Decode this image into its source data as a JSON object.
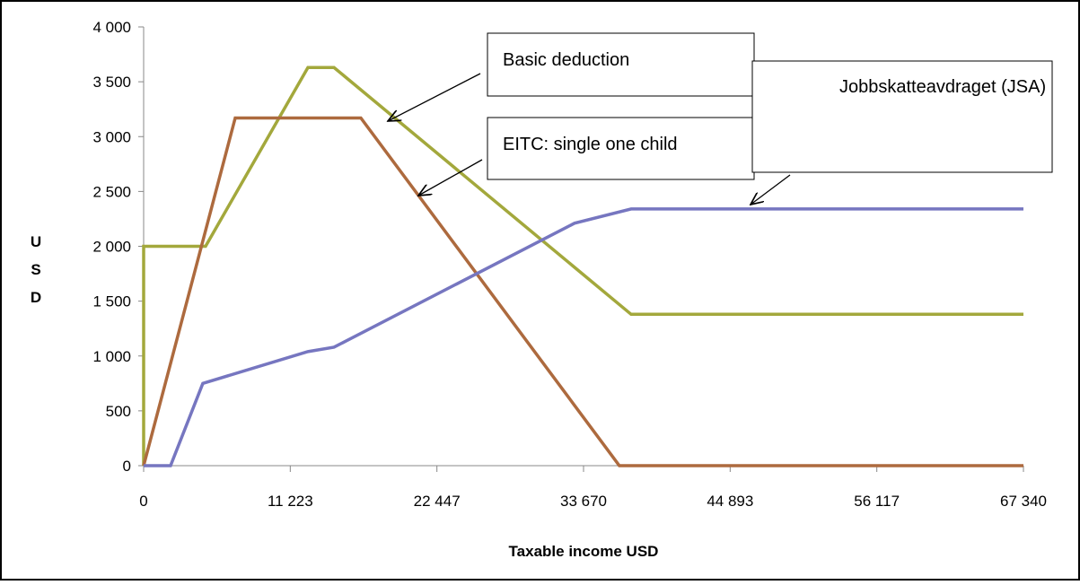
{
  "chart_data": {
    "type": "line",
    "xlabel": "Taxable income USD",
    "ylabel": "USD",
    "xlim": [
      0,
      67340
    ],
    "xticks": [
      0,
      {
        "value": 11223,
        "label": "11 223"
      },
      {
        "value": 22447,
        "label": "22 447"
      },
      {
        "value": 33670,
        "label": "33 670"
      },
      {
        "value": 44893,
        "label": "44 893"
      },
      {
        "value": 56117,
        "label": "56 117"
      },
      {
        "value": 67340,
        "label": "67 340"
      }
    ],
    "ylim": [
      0,
      4000
    ],
    "yticks": [
      0,
      500,
      {
        "value": 1000,
        "label": "1 000"
      },
      {
        "value": 1500,
        "label": "1 500"
      },
      {
        "value": 2000,
        "label": "2 000"
      },
      {
        "value": 2500,
        "label": "2 500"
      },
      {
        "value": 3000,
        "label": "3 000"
      },
      {
        "value": 3500,
        "label": "3 500"
      },
      {
        "value": 4000,
        "label": "4 000"
      }
    ],
    "grid": false,
    "series": [
      {
        "name": "Basic deduction",
        "color": "#a3a83c",
        "x": [
          0,
          0,
          4740,
          12575,
          14570,
          37310,
          67340
        ],
        "values": [
          0,
          2000,
          2000,
          3630,
          3630,
          1380,
          1380
        ]
      },
      {
        "name": "EITC: single one child",
        "color": "#ad6a3e",
        "x": [
          0,
          7010,
          16625,
          36410,
          67340
        ],
        "values": [
          0,
          3170,
          3170,
          0,
          0
        ]
      },
      {
        "name": "Jobbskatteavdraget (JSA)",
        "color": "#7676c0",
        "x": [
          0,
          2060,
          4530,
          12575,
          14570,
          32975,
          37310,
          67340
        ],
        "values": [
          0,
          0,
          750,
          1040,
          1080,
          2210,
          2340,
          2340
        ]
      }
    ]
  }
}
